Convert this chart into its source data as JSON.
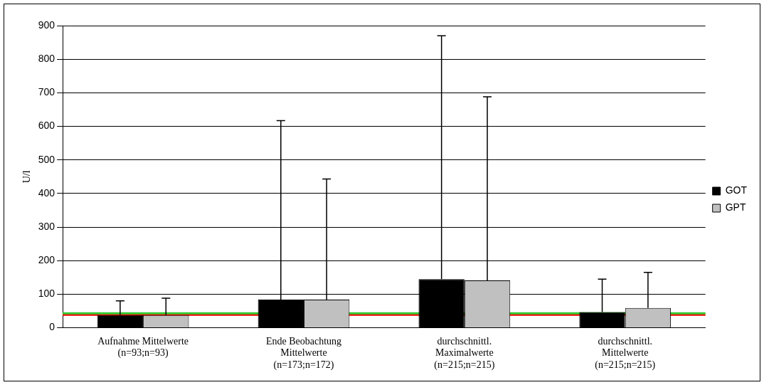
{
  "chart_data": {
    "type": "bar",
    "ylabel": "U/l",
    "categories": [
      "Aufnahme Mittelwerte (n=93;n=93)",
      "Ende Beobachtung Mittelwerte (n=173;n=172)",
      "durchschnittl. Maximalwerte (n=215;n=215)",
      "durchschnittl. Mittelwerte (n=215;n=215)"
    ],
    "series": [
      {
        "name": "GOT",
        "color": "#000000",
        "values": [
          38,
          84,
          145,
          47
        ],
        "errors": [
          [
            38,
            80
          ],
          [
            84,
            617
          ],
          [
            145,
            870
          ],
          [
            47,
            145
          ]
        ]
      },
      {
        "name": "GPT",
        "color": "#c0c0c0",
        "values": [
          38,
          84,
          141,
          59
        ],
        "errors": [
          [
            38,
            88
          ],
          [
            84,
            443
          ],
          [
            141,
            688
          ],
          [
            59,
            165
          ]
        ]
      }
    ],
    "ylim": [
      0,
      900
    ],
    "yticks": [
      0,
      100,
      200,
      300,
      400,
      500,
      600,
      700,
      800,
      900
    ],
    "grid": "y",
    "legend": "right",
    "ref_lines": [
      {
        "axis": "y",
        "value": 39,
        "color": "#ff0000"
      },
      {
        "axis": "y",
        "value": 43,
        "color": "#33cc33"
      }
    ]
  }
}
